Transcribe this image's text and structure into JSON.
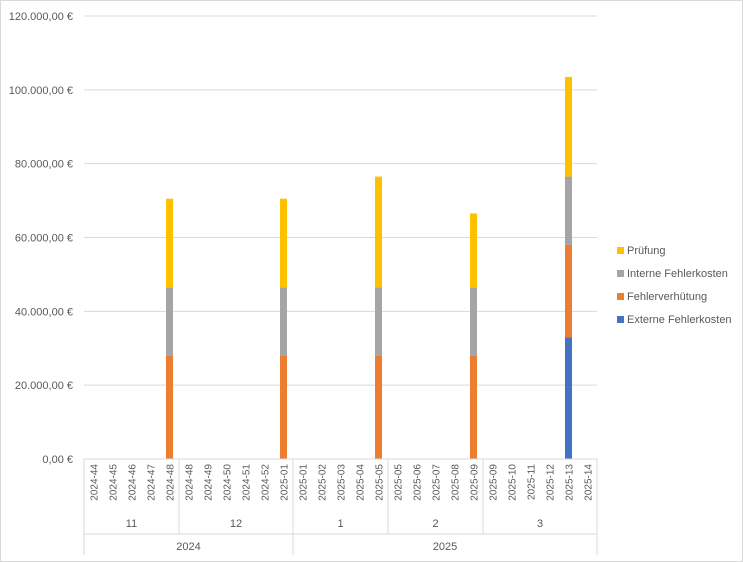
{
  "chart_data": {
    "type": "bar",
    "stacked": true,
    "categories": [
      "2024-44",
      "2024-45",
      "2024-46",
      "2024-47",
      "2024-48",
      "2024-48",
      "2024-49",
      "2024-50",
      "2024-51",
      "2024-52",
      "2025-01",
      "2025-01",
      "2025-02",
      "2025-03",
      "2025-04",
      "2025-05",
      "2025-05",
      "2025-06",
      "2025-07",
      "2025-08",
      "2025-09",
      "2025-09",
      "2025-10",
      "2025-11",
      "2025-12",
      "2025-13",
      "2025-14"
    ],
    "month_groups": [
      {
        "label": "11",
        "count": 5
      },
      {
        "label": "12",
        "count": 6
      },
      {
        "label": "1",
        "count": 5
      },
      {
        "label": "2",
        "count": 5
      },
      {
        "label": "3",
        "count": 6
      }
    ],
    "year_groups": [
      {
        "label": "2024",
        "count": 11
      },
      {
        "label": "2025",
        "count": 16
      }
    ],
    "series": [
      {
        "name": "Externe Fehlerkosten",
        "color": "#4472C4",
        "values": [
          0,
          0,
          0,
          0,
          0,
          0,
          0,
          0,
          0,
          0,
          0,
          0,
          0,
          0,
          0,
          0,
          0,
          0,
          0,
          0,
          0,
          0,
          0,
          0,
          0,
          33000,
          0
        ]
      },
      {
        "name": "Fehlerverhütung",
        "color": "#ED7D31",
        "values": [
          0,
          0,
          0,
          0,
          28000,
          0,
          0,
          0,
          0,
          0,
          28000,
          0,
          0,
          0,
          0,
          28000,
          0,
          0,
          0,
          0,
          28000,
          0,
          0,
          0,
          0,
          25000,
          0
        ]
      },
      {
        "name": "Interne Fehlerkosten",
        "color": "#A5A5A5",
        "values": [
          0,
          0,
          0,
          0,
          18500,
          0,
          0,
          0,
          0,
          0,
          18500,
          0,
          0,
          0,
          0,
          18500,
          0,
          0,
          0,
          0,
          18500,
          0,
          0,
          0,
          0,
          18500,
          0
        ]
      },
      {
        "name": "Prüfung",
        "color": "#FFC000",
        "values": [
          0,
          0,
          0,
          0,
          24000,
          0,
          0,
          0,
          0,
          0,
          24000,
          0,
          0,
          0,
          0,
          30000,
          0,
          0,
          0,
          0,
          20000,
          0,
          0,
          0,
          0,
          27000,
          0
        ]
      }
    ],
    "yticks": [
      "0,00 €",
      "20.000,00 €",
      "40.000,00 €",
      "60.000,00 €",
      "80.000,00 €",
      "100.000,00 €",
      "120.000,00 €"
    ],
    "ylim": [
      0,
      120000
    ],
    "grid": true,
    "legend_position": "right"
  }
}
